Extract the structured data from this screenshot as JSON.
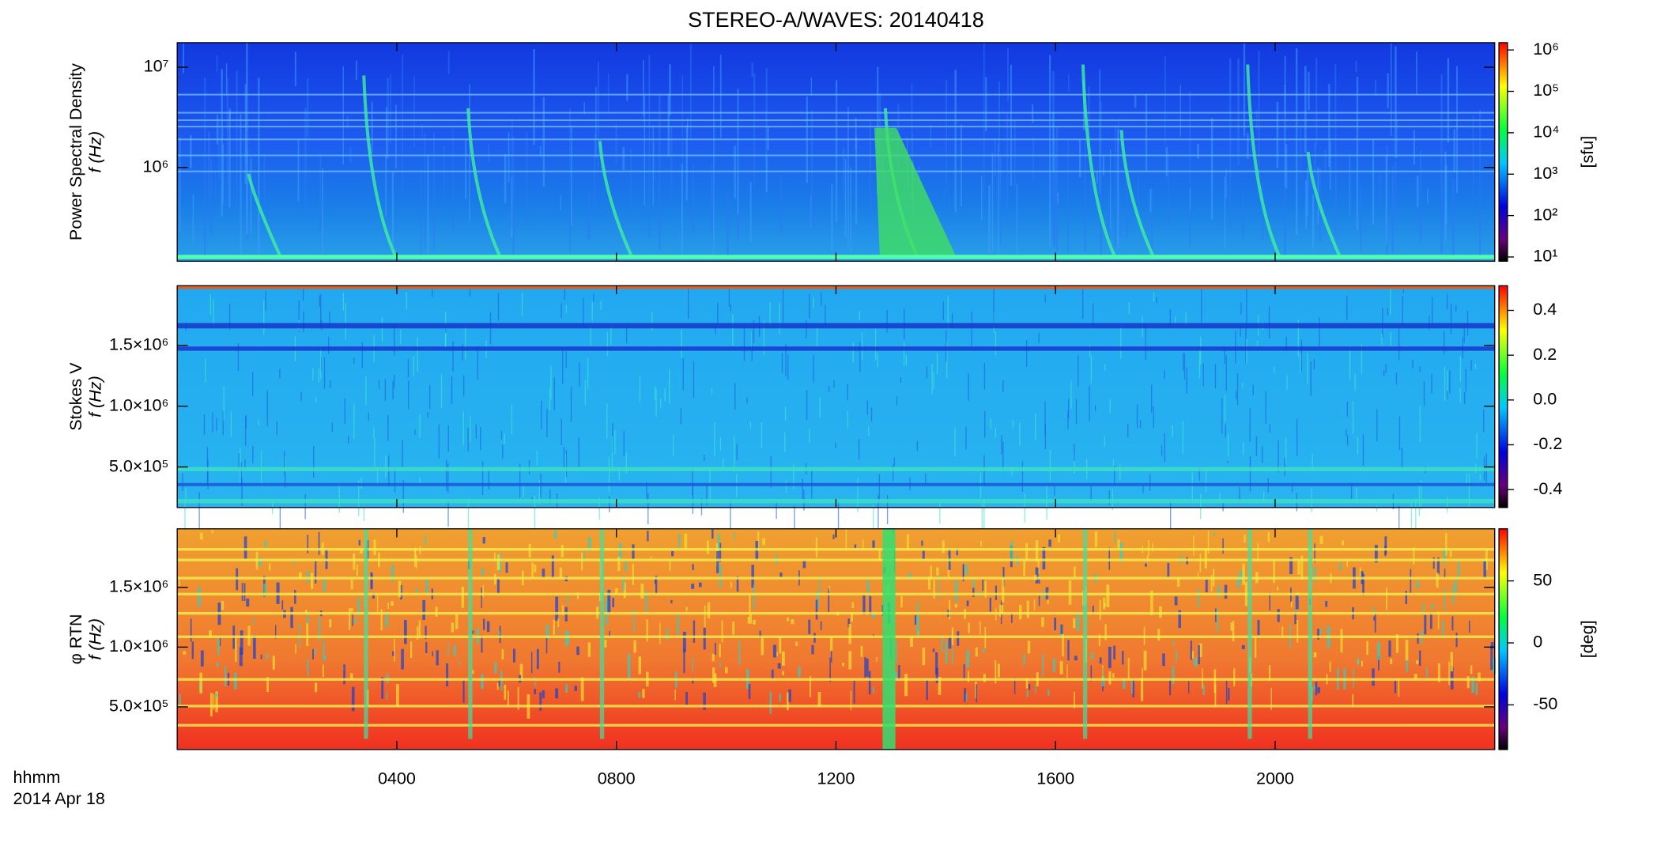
{
  "title": "STEREO-A/WAVES: 20140418",
  "x_axis": {
    "label": "hhmm",
    "sublabel": "2014 Apr 18",
    "xlim": [
      0,
      24
    ],
    "xticks": [
      {
        "value": 4,
        "label": "0400"
      },
      {
        "value": 8,
        "label": "0800"
      },
      {
        "value": 12,
        "label": "1200"
      },
      {
        "value": 16,
        "label": "1600"
      },
      {
        "value": 20,
        "label": "2000"
      }
    ]
  },
  "chart_data": [
    {
      "type": "spectrogram",
      "ylabel": [
        "Power Spectral Density",
        "f (Hz)"
      ],
      "ylog": true,
      "ylim": [
        116000,
        17600000
      ],
      "yticks": [
        {
          "value": 1000000,
          "label": "10⁶"
        },
        {
          "value": 10000000,
          "label": "10⁷"
        }
      ],
      "colorbar": {
        "label": "[sfu]",
        "log": true,
        "lim": [
          7.9,
          1500000
        ],
        "ticks": [
          {
            "value": 10,
            "label": "10¹"
          },
          {
            "value": 100,
            "label": "10²"
          },
          {
            "value": 1000,
            "label": "10³"
          },
          {
            "value": 10000,
            "label": "10⁴"
          },
          {
            "value": 100000,
            "label": "10⁵"
          },
          {
            "value": 1000000,
            "label": "10⁶"
          }
        ]
      }
    },
    {
      "type": "spectrogram",
      "ylabel": [
        "Stokes V",
        "f (Hz)"
      ],
      "ylog": false,
      "ylim": [
        167000,
        1990000
      ],
      "yticks": [
        {
          "value": 500000,
          "label": "5.0×10⁵"
        },
        {
          "value": 1000000,
          "label": "1.0×10⁶"
        },
        {
          "value": 1500000,
          "label": "1.5×10⁶"
        }
      ],
      "colorbar": {
        "log": false,
        "lim": [
          -0.48,
          0.51
        ],
        "ticks": [
          {
            "value": -0.4,
            "label": "-0.4"
          },
          {
            "value": -0.2,
            "label": "-0.2"
          },
          {
            "value": 0,
            "label": "0.0"
          },
          {
            "value": 0.2,
            "label": "0.2"
          },
          {
            "value": 0.4,
            "label": "0.4"
          }
        ]
      }
    },
    {
      "type": "spectrogram",
      "ylabel": [
        "φ RTN",
        "f (Hz)"
      ],
      "ylog": false,
      "ylim": [
        143000,
        1990000
      ],
      "yticks": [
        {
          "value": 500000,
          "label": "5.0×10⁵"
        },
        {
          "value": 1000000,
          "label": "1.0×10⁶"
        },
        {
          "value": 1500000,
          "label": "1.5×10⁶"
        }
      ],
      "colorbar": {
        "label": "[deg]",
        "log": false,
        "lim": [
          -86,
          92
        ],
        "ticks": [
          -50,
          0,
          50
        ]
      }
    }
  ]
}
